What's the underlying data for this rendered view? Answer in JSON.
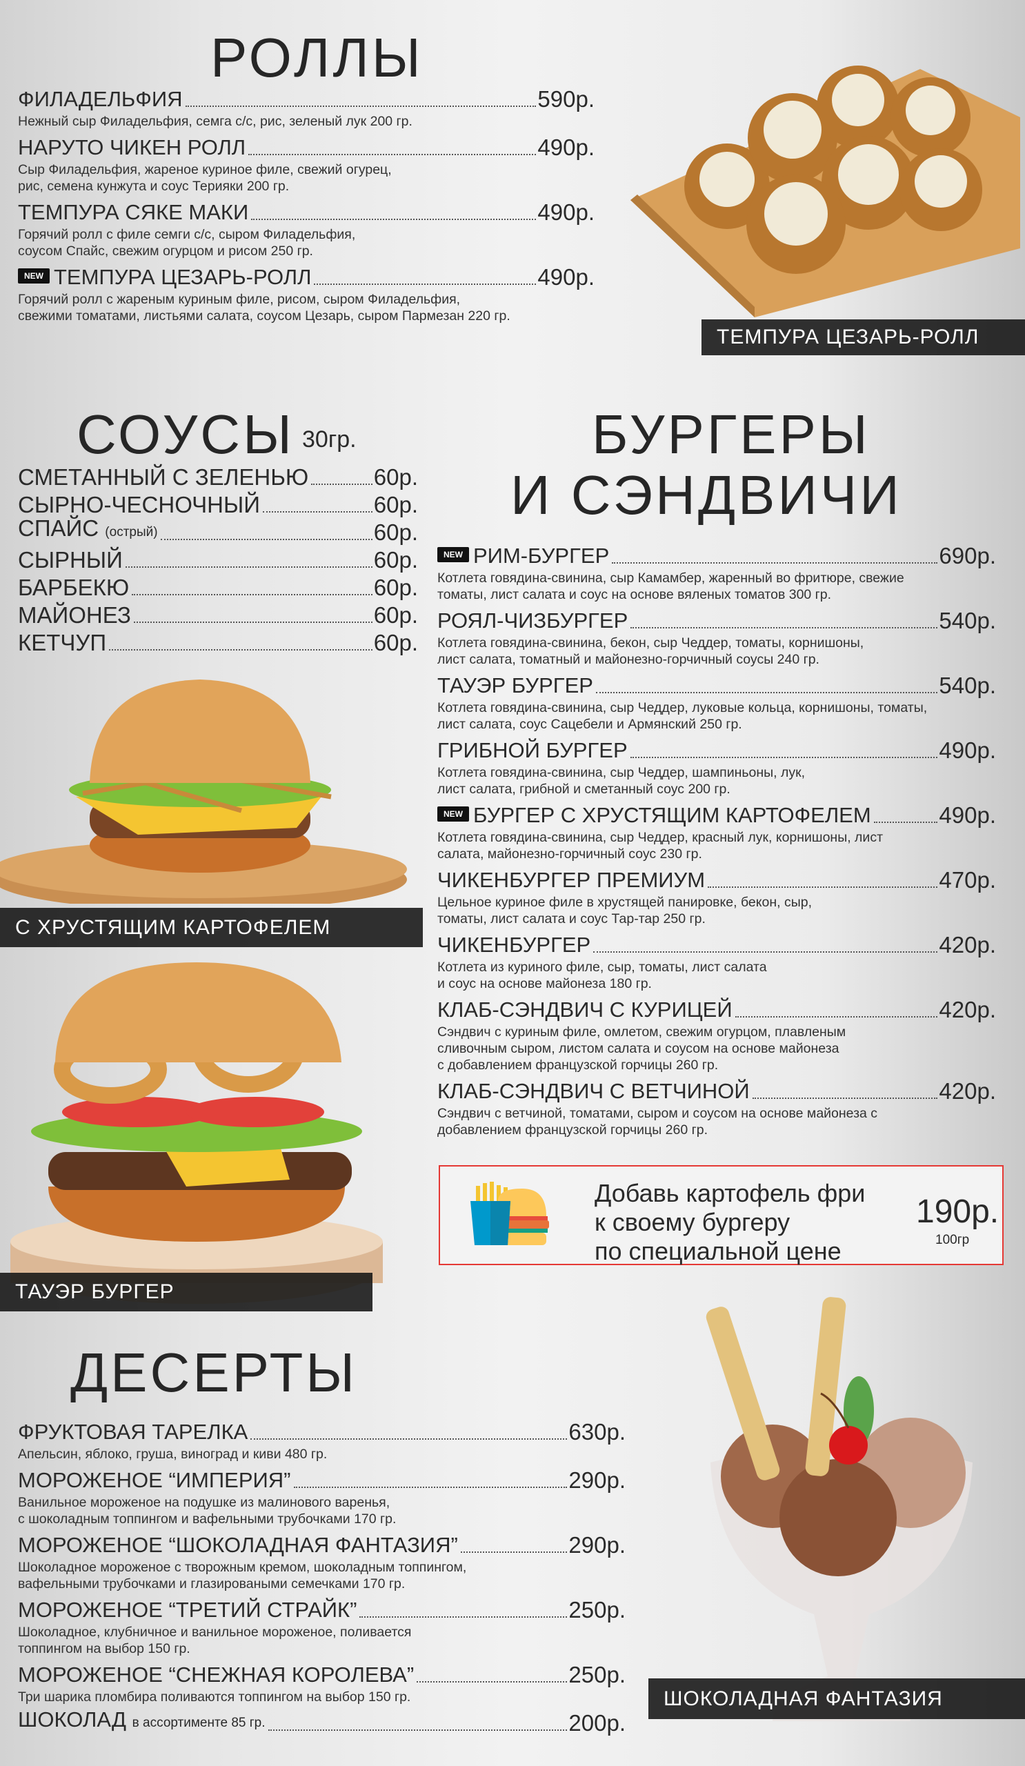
{
  "rolls": {
    "title": "РОЛЛЫ",
    "items": [
      {
        "name": "ФИЛАДЕЛЬФИЯ",
        "price": "590р.",
        "desc": "Нежный сыр Филадельфия, семга с/с, рис, зеленый лук 200 гр.",
        "new": false
      },
      {
        "name": "НАРУТО ЧИКЕН РОЛЛ",
        "price": "490р.",
        "desc": "Сыр Филадельфия, жареное куриное филе, свежий огурец,\nрис, семена кунжута и соус Терияки 200 гр.",
        "new": false
      },
      {
        "name": "ТЕМПУРА СЯКЕ МАКИ",
        "price": "490р.",
        "desc": "Горячий ролл с филе семги с/с, сыром Филадельфия,\nсоусом Спайс, свежим огурцом и рисом 250 гр.",
        "new": false
      },
      {
        "name": "ТЕМПУРА ЦЕЗАРЬ-РОЛЛ",
        "price": "490р.",
        "desc": "Горячий ролл с жареным куриным филе, рисом, сыром Филадельфия,\nсвежими томатами, листьями салата, соусом Цезарь, сыром Пармезан 220 гр.",
        "new": true
      }
    ],
    "image_caption": "ТЕМПУРА ЦЕЗАРЬ-РОЛЛ"
  },
  "new_badge": "NEW",
  "sauces": {
    "title": "СОУСЫ",
    "weight": "30гр.",
    "items": [
      {
        "name": "СМЕТАННЫЙ С ЗЕЛЕНЬЮ",
        "note": "",
        "price": "60р."
      },
      {
        "name": "СЫРНО-ЧЕСНОЧНЫЙ",
        "note": "",
        "price": "60р."
      },
      {
        "name": "СПАЙС",
        "note": "(острый)",
        "price": "60р."
      },
      {
        "name": "СЫРНЫЙ",
        "note": "",
        "price": "60р."
      },
      {
        "name": "БАРБЕКЮ",
        "note": "",
        "price": "60р."
      },
      {
        "name": "МАЙОНЕЗ",
        "note": "",
        "price": "60р."
      },
      {
        "name": "КЕТЧУП",
        "note": "",
        "price": "60р."
      }
    ]
  },
  "burger_images": {
    "caption1": "С ХРУСТЯЩИМ КАРТОФЕЛЕМ",
    "caption2": "ТАУЭР БУРГЕР"
  },
  "burgers": {
    "title_line1": "БУРГЕРЫ",
    "title_line2": "И СЭНДВИЧИ",
    "items": [
      {
        "name": "РИМ-БУРГЕР",
        "price": "690р.",
        "desc": "Котлета говядина-свинина, сыр Камамбер, жаренный во фритюре, свежие\nтоматы, лист салата и соус на основе вяленых томатов 300 гр.",
        "new": true
      },
      {
        "name": "РОЯЛ-ЧИЗБУРГЕР",
        "price": "540р.",
        "desc": "Котлета говядина-свинина, бекон, сыр Чеддер, томаты, корнишоны,\nлист салата, томатный и майонезно-горчичный соусы 240 гр.",
        "new": false
      },
      {
        "name": "ТАУЭР БУРГЕР",
        "price": "540р.",
        "desc": "Котлета говядина-свинина, сыр Чеддер, луковые кольца, корнишоны, томаты,\nлист салата, соус Сацебели и Армянский  250 гр.",
        "new": false
      },
      {
        "name": "ГРИБНОЙ БУРГЕР",
        "price": "490р.",
        "desc": "Котлета говядина-свинина, сыр Чеддер, шампиньоны, лук,\nлист салата, грибной и сметанный соус 200 гр.",
        "new": false
      },
      {
        "name": "БУРГЕР С ХРУСТЯЩИМ КАРТОФЕЛЕМ",
        "price": "490р.",
        "desc": "Котлета говядина-свинина, сыр Чеддер, красный лук, корнишоны, лист\nсалата, майонезно-горчичный соус 230 гр.",
        "new": true
      },
      {
        "name": "ЧИКЕНБУРГЕР ПРЕМИУМ",
        "price": "470р.",
        "desc": "Цельное куриное филе в хрустящей панировке, бекон, сыр,\nтоматы, лист салата и соус Тар-тар 250 гр.",
        "new": false
      },
      {
        "name": "ЧИКЕНБУРГЕР",
        "price": "420р.",
        "desc": "Котлета из куриного филе, сыр, томаты, лист салата\nи соус на основе майонеза 180 гр.",
        "new": false
      },
      {
        "name": "КЛАБ-СЭНДВИЧ С КУРИЦЕЙ",
        "price": "420р.",
        "desc": "Сэндвич с куриным филе, омлетом, свежим огурцом, плавленым\nсливочным сыром, листом салата и соусом на основе майонеза\nс добавлением французской горчицы 260 гр.",
        "new": false
      },
      {
        "name": "КЛАБ-СЭНДВИЧ С ВЕТЧИНОЙ",
        "price": "420р.",
        "desc": "Сэндвич с ветчиной, томатами, сыром и соусом на основе майонеза с\nдобавлением французской горчицы 260 гр.",
        "new": false
      }
    ]
  },
  "promo": {
    "text": "Добавь картофель фри\nк своему бургеру\nпо специальной цене",
    "price": "190р.",
    "weight": "100гр",
    "border_color": "#e53935"
  },
  "desserts": {
    "title": "ДЕСЕРТЫ",
    "items": [
      {
        "name": "ФРУКТОВАЯ ТАРЕЛКА",
        "price": "630р.",
        "desc": "Апельсин, яблоко, груша, виноград и киви 480 гр."
      },
      {
        "name": "МОРОЖЕНОЕ “ИМПЕРИЯ”",
        "price": "290р.",
        "desc": "Ванильное мороженое на подушке из малинового варенья,\nс шоколадным топпингом и вафельными трубочками 170 гр."
      },
      {
        "name": "МОРОЖЕНОЕ “ШОКОЛАДНАЯ ФАНТАЗИЯ”",
        "price": "290р.",
        "desc": "Шоколадное мороженое с творожным кремом, шоколадным топпингом,\nвафельными трубочками и глазироваными семечками 170 гр."
      },
      {
        "name": "МОРОЖЕНОЕ “ТРЕТИЙ СТРАЙК”",
        "price": "250р.",
        "desc": "Шоколадное, клубничное и ванильное мороженое, поливается\nтоппингом на выбор 150 гр."
      },
      {
        "name": "МОРОЖЕНОЕ “СНЕЖНАЯ КОРОЛЕВА”",
        "price": "250р.",
        "desc": "Три шарика пломбира поливаются топпингом на выбор 150 гр."
      }
    ],
    "chocolate": {
      "name": "ШОКОЛАД",
      "note": "в ассортименте 85 гр.",
      "price": "200р."
    },
    "image_caption": "ШОКОЛАДНАЯ ФАНТАЗИЯ"
  }
}
